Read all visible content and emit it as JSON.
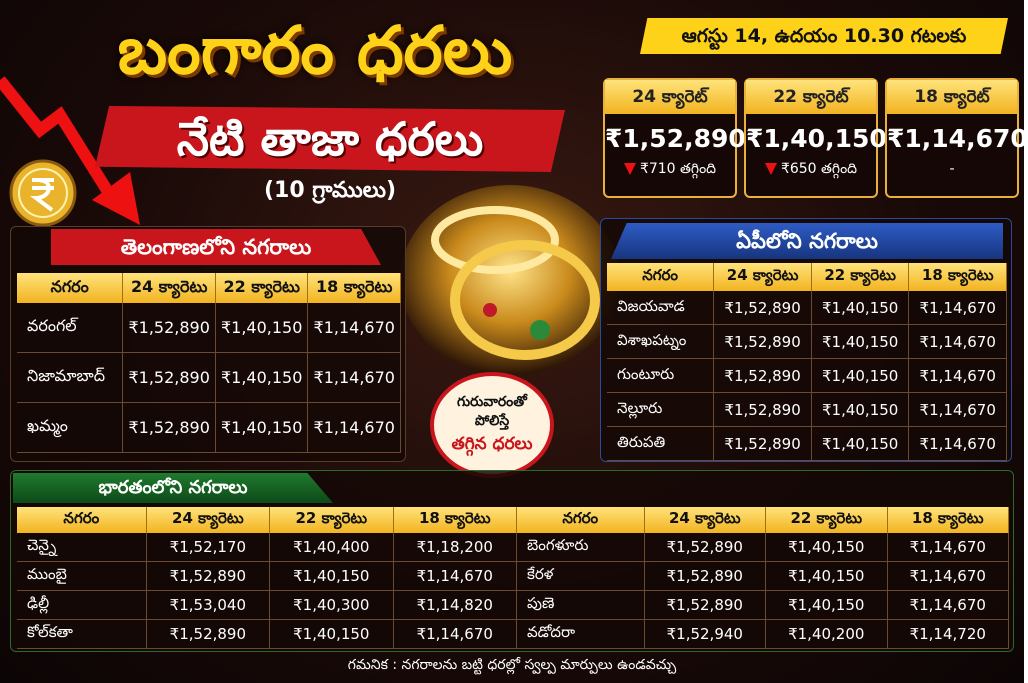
{
  "header": {
    "title": "బంగారం ధరలు",
    "subtitle": "నేటి తాజా ధరలు",
    "unit": "(10 గ్రాములు)",
    "date": "ఆగస్టు 14, ఉదయం 10.30 గటలకు"
  },
  "cards": [
    {
      "label": "24 క్యారెట్",
      "price": "₹1,52,890",
      "change": "₹710 తగ్గింది"
    },
    {
      "label": "22 క్యారెట్",
      "price": "₹1,40,150",
      "change": "₹650 తగ్గింది"
    },
    {
      "label": "18 క్యారెట్",
      "price": "₹1,14,670",
      "change": "-"
    }
  ],
  "telangana": {
    "title": "తెలంగాణలోని నగరాలు",
    "headers": [
      "నగరం",
      "24 క్యారెటు",
      "22 క్యారెటు",
      "18 క్యారెటు"
    ],
    "rows": [
      [
        "వరంగల్",
        "₹1,52,890",
        "₹1,40,150",
        "₹1,14,670"
      ],
      [
        "నిజామాబాద్",
        "₹1,52,890",
        "₹1,40,150",
        "₹1,14,670"
      ],
      [
        "ఖమ్మం",
        "₹1,52,890",
        "₹1,40,150",
        "₹1,14,670"
      ]
    ]
  },
  "ap": {
    "title": "ఏపీలోని నగరాలు",
    "headers": [
      "నగరం",
      "24 క్యారెటు",
      "22 క్యారెటు",
      "18 క్యారెటు"
    ],
    "rows": [
      [
        "విజయవాడ",
        "₹1,52,890",
        "₹1,40,150",
        "₹1,14,670"
      ],
      [
        "విశాఖపట్నం",
        "₹1,52,890",
        "₹1,40,150",
        "₹1,14,670"
      ],
      [
        "గుంటూరు",
        "₹1,52,890",
        "₹1,40,150",
        "₹1,14,670"
      ],
      [
        "నెల్లూరు",
        "₹1,52,890",
        "₹1,40,150",
        "₹1,14,670"
      ],
      [
        "తిరుపతి",
        "₹1,52,890",
        "₹1,40,150",
        "₹1,14,670"
      ]
    ]
  },
  "badge": {
    "line1": "గురువారంతో",
    "line2": "పోలిస్తే",
    "line3": "తగ్గిన ధరలు"
  },
  "india": {
    "title": "భారతంలోని నగరాలు",
    "left": {
      "headers": [
        "నగరం",
        "24 క్యారెటు",
        "22 క్యారెటు",
        "18 క్యారెటు"
      ],
      "rows": [
        [
          "చెన్నై",
          "₹1,52,170",
          "₹1,40,400",
          "₹1,18,200"
        ],
        [
          "ముంబై",
          "₹1,52,890",
          "₹1,40,150",
          "₹1,14,670"
        ],
        [
          "ఢిల్లీ",
          "₹1,53,040",
          "₹1,40,300",
          "₹1,14,820"
        ],
        [
          "కోల్‌కతా",
          "₹1,52,890",
          "₹1,40,150",
          "₹1,14,670"
        ]
      ]
    },
    "right": {
      "headers": [
        "నగరం",
        "24 క్యారెటు",
        "22 క్యారెటు",
        "18 క్యారెటు"
      ],
      "rows": [
        [
          "బెంగళూరు",
          "₹1,52,890",
          "₹1,40,150",
          "₹1,14,670"
        ],
        [
          "కేరళ",
          "₹1,52,890",
          "₹1,40,150",
          "₹1,14,670"
        ],
        [
          "పుణె",
          "₹1,52,890",
          "₹1,40,150",
          "₹1,14,670"
        ],
        [
          "వడోదరా",
          "₹1,52,940",
          "₹1,40,200",
          "₹1,14,720"
        ]
      ]
    }
  },
  "footer": "గమనిక : నగరాలను బట్టి ధరల్లో స్వల్ప మార్పులు ఉండవచ్చు"
}
